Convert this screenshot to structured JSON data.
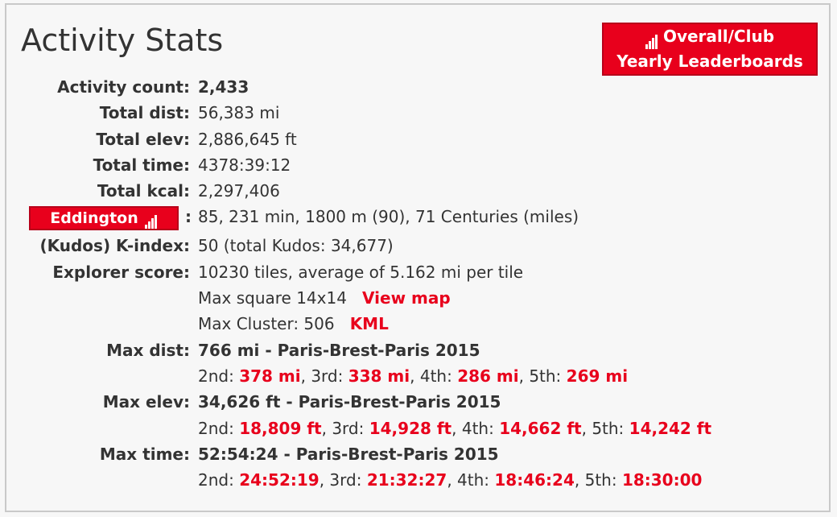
{
  "title": "Activity Stats",
  "leaderboard_button": {
    "line1": "Overall/Club",
    "line2": "Yearly Leaderboards",
    "icon": "signal-bars-icon"
  },
  "stats": {
    "activity_count": {
      "label": "Activity count:",
      "value": "2,433"
    },
    "total_dist": {
      "label": "Total dist:",
      "value": "56,383 mi"
    },
    "total_elev": {
      "label": "Total elev:",
      "value": "2,886,645 ft"
    },
    "total_time": {
      "label": "Total time:",
      "value": "4378:39:12"
    },
    "total_kcal": {
      "label": "Total kcal:",
      "value": "2,297,406"
    },
    "eddington": {
      "button": "Eddington",
      "icon": "signal-bars-icon",
      "colon": ":",
      "value": "85, 231 min, 1800 m (90), 71 Centuries (miles)"
    },
    "kudos": {
      "label": "(Kudos) K-index:",
      "value": "50 (total Kudos: 34,677)"
    },
    "explorer": {
      "label": "Explorer score:",
      "value": "10230 tiles, average of 5.162 mi per tile",
      "max_square": "Max square 14x14",
      "view_map": "View map",
      "max_cluster": "Max Cluster: 506",
      "kml": "KML"
    },
    "max_dist": {
      "label": "Max dist:",
      "value": "766 mi - Paris-Brest-Paris 2015",
      "ranks": [
        {
          "label": "2nd:",
          "value": "378 mi"
        },
        {
          "label": "3rd:",
          "value": "338 mi"
        },
        {
          "label": "4th:",
          "value": "286 mi"
        },
        {
          "label": "5th:",
          "value": "269 mi"
        }
      ]
    },
    "max_elev": {
      "label": "Max elev:",
      "value": "34,626 ft - Paris-Brest-Paris 2015",
      "ranks": [
        {
          "label": "2nd:",
          "value": "18,809 ft"
        },
        {
          "label": "3rd:",
          "value": "14,928 ft"
        },
        {
          "label": "4th:",
          "value": "14,662 ft"
        },
        {
          "label": "5th:",
          "value": "14,242 ft"
        }
      ]
    },
    "max_time": {
      "label": "Max time:",
      "value": "52:54:24 - Paris-Brest-Paris 2015",
      "ranks": [
        {
          "label": "2nd:",
          "value": "24:52:19"
        },
        {
          "label": "3rd:",
          "value": "21:32:27"
        },
        {
          "label": "4th:",
          "value": "18:46:24"
        },
        {
          "label": "5th:",
          "value": "18:30:00"
        }
      ]
    }
  },
  "colors": {
    "accent": "#e8001c",
    "text": "#333333",
    "border": "#c9c9c9",
    "background": "#f7f7f7"
  }
}
